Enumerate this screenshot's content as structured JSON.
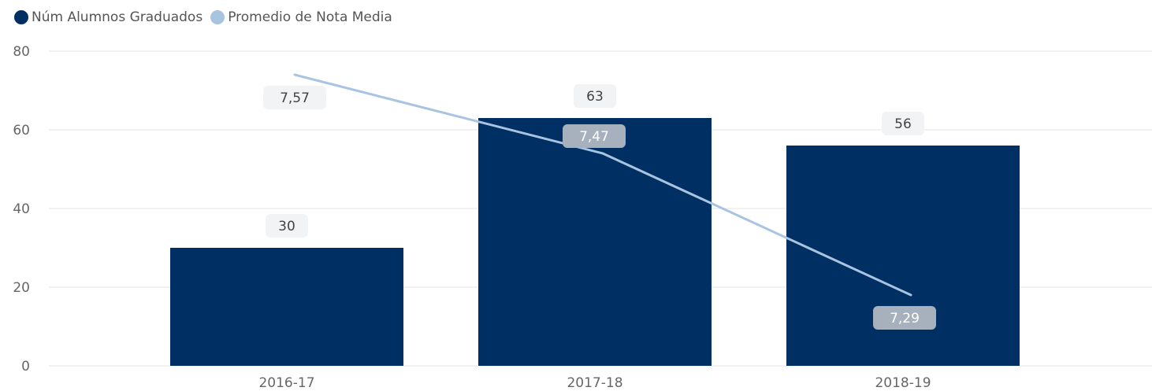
{
  "colors": {
    "bars": "#003063",
    "line": "#a8c4e0",
    "grid": "#e6e6e6",
    "axis_text": "#666666",
    "bar_label_bg": "#f1f3f5",
    "bar_label_text": "#444444",
    "line_label_bg": "#a7b1bd",
    "line_label_text": "#ffffff"
  },
  "legend": [
    {
      "label": "Núm Alumnos Graduados",
      "color": "#003063"
    },
    {
      "label": "Promedio de Nota Media",
      "color": "#a8c4e0"
    }
  ],
  "chart_data": {
    "type": "bar",
    "categories": [
      "2016-17",
      "2017-18",
      "2018-19"
    ],
    "series": [
      {
        "name": "Núm Alumnos Graduados",
        "type": "bar",
        "axis": "left",
        "values": [
          30,
          63,
          56
        ],
        "labels": [
          "30",
          "63",
          "56"
        ]
      },
      {
        "name": "Promedio de Nota Media",
        "type": "line",
        "axis": "secondary",
        "values": [
          7.57,
          7.47,
          7.29
        ],
        "labels": [
          "7,57",
          "7,47",
          "7,29"
        ]
      }
    ],
    "ylim": [
      0,
      80
    ],
    "yticks": [
      "0",
      "20",
      "40",
      "60",
      "80"
    ],
    "secondary_ylim": [
      7.2,
      7.6
    ],
    "grid": true,
    "legend_position": "top-left"
  }
}
